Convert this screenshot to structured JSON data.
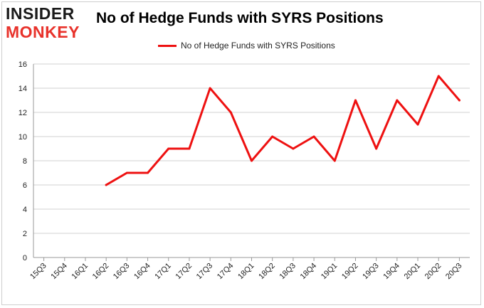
{
  "logo": {
    "line1": "INSIDER",
    "line2": "MONKEY"
  },
  "chart_data": {
    "type": "line",
    "title": "No of Hedge Funds with SYRS Positions",
    "xlabel": "",
    "ylabel": "",
    "categories": [
      "15Q3",
      "15Q4",
      "16Q1",
      "16Q2",
      "16Q3",
      "16Q4",
      "17Q1",
      "17Q2",
      "17Q3",
      "17Q4",
      "18Q1",
      "18Q2",
      "18Q3",
      "18Q4",
      "19Q1",
      "19Q2",
      "19Q3",
      "19Q4",
      "20Q1",
      "20Q2",
      "20Q3"
    ],
    "series": [
      {
        "name": "No of Hedge Funds with SYRS Positions",
        "color": "#ee1111",
        "values": [
          null,
          null,
          null,
          6,
          7,
          7,
          9,
          9,
          14,
          12,
          8,
          10,
          9,
          10,
          8,
          13,
          9,
          13,
          11,
          15,
          13
        ]
      }
    ],
    "ylim": [
      0,
      16
    ],
    "yticks": [
      0,
      2,
      4,
      6,
      8,
      10,
      12,
      14,
      16
    ],
    "grid": true,
    "legend_position": "top-center"
  }
}
